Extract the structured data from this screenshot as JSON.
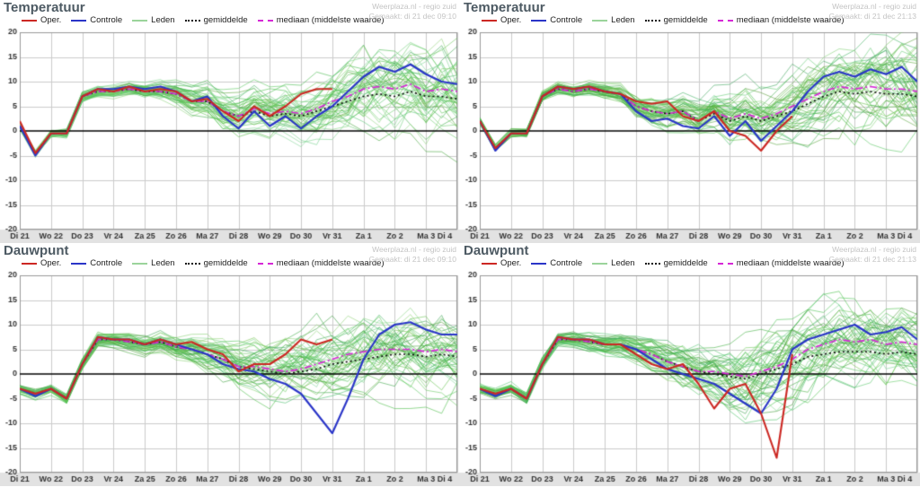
{
  "legend": [
    {
      "label": "Oper.",
      "color": "#cc2823",
      "dash": "solid"
    },
    {
      "label": "Controle",
      "color": "#2a35c8",
      "dash": "solid"
    },
    {
      "label": "Leden",
      "color": "#9bd49b",
      "dash": "solid"
    },
    {
      "label": "gemiddelde",
      "color": "#111111",
      "dash": "dotted"
    },
    {
      "label": "mediaan (middelste waarde)",
      "color": "#d628d6",
      "dash": "dashed"
    }
  ],
  "axis": {
    "ylim": [
      -20,
      20
    ],
    "yticks": [
      20,
      15,
      10,
      5,
      0,
      -5,
      -10,
      -15,
      -20
    ],
    "categories": [
      "Di 21",
      "Wo 22",
      "Do 23",
      "Vr 24",
      "Za 25",
      "Zo 26",
      "Ma 27",
      "Di 28",
      "Wo 29",
      "Do 30",
      "Vr 31",
      "Za 1",
      "Zo 2",
      "Ma 3",
      "Di 4"
    ]
  },
  "chart_data": [
    {
      "type": "line",
      "title": "Temperatuur",
      "watermark1": "Weerplaza.nl - regio zuid",
      "watermark2": "Gemaakt: di 21 dec 09:10",
      "x_days": 14,
      "x_step_days": 0.5,
      "series": [
        {
          "name": "gemiddelde",
          "color": "#111111",
          "width": 1.7,
          "dash": [
            2,
            3
          ],
          "values": [
            1,
            -4.5,
            -0.5,
            -0.5,
            7,
            8,
            8,
            8.5,
            8,
            8,
            7.5,
            6,
            6,
            4,
            3,
            4,
            3,
            3.5,
            3,
            4,
            5,
            6,
            7,
            7.5,
            7,
            8,
            7,
            7,
            6.5
          ]
        },
        {
          "name": "mediaan (middelste waarde)",
          "color": "#d628d6",
          "width": 1.7,
          "dash": [
            8,
            3,
            2,
            3
          ],
          "values": [
            1,
            -4.5,
            -0.5,
            -0.5,
            7,
            8,
            8,
            8.5,
            8,
            8,
            7.5,
            6,
            6,
            4,
            3,
            4.5,
            3.5,
            4,
            3.5,
            4.5,
            6,
            7,
            8.5,
            9,
            8.5,
            9.5,
            8,
            8.5,
            8
          ]
        },
        {
          "name": "Controle",
          "color": "#2a35c8",
          "width": 2.1,
          "dash": [],
          "values": [
            1,
            -5,
            -0.5,
            -0.5,
            7,
            8.5,
            8.5,
            9,
            8.5,
            9,
            8,
            6,
            7,
            3,
            0.5,
            4,
            1,
            3,
            0.5,
            3,
            5,
            8,
            11,
            13,
            12,
            13.5,
            11.5,
            10,
            9.5
          ]
        },
        {
          "name": "Oper.",
          "color": "#cc2823",
          "width": 2.1,
          "dash": [],
          "values": [
            2,
            -4.5,
            -0.5,
            -0.5,
            7,
            8.5,
            8,
            9,
            8,
            8.5,
            8,
            6,
            6.5,
            4,
            2,
            5,
            3,
            5,
            7.5,
            8.5,
            8.5
          ]
        }
      ],
      "ensemble": {
        "name": "Leden",
        "count": 49,
        "seed": 11,
        "spread_by_day": [
          0.5,
          0.6,
          0.8,
          1,
          1.2,
          1.8,
          2.8,
          3.5,
          4,
          4.5,
          5,
          6,
          6.5,
          7,
          7.5
        ]
      }
    },
    {
      "type": "line",
      "title": "Temperatuur",
      "watermark1": "Weerplaza.nl - regio zuid",
      "watermark2": "Gemaakt: di 21 dec 21:13",
      "x_days": 14,
      "x_step_days": 0.5,
      "series": [
        {
          "name": "gemiddelde",
          "color": "#111111",
          "width": 1.7,
          "dash": [
            2,
            3
          ],
          "values": [
            2,
            -3.5,
            -0.5,
            -0.5,
            7,
            8.5,
            8,
            8.5,
            8,
            7.5,
            5,
            4,
            3.5,
            4,
            2,
            3.5,
            2,
            3,
            2,
            3,
            4,
            5.5,
            7,
            8,
            7.5,
            8,
            7.5,
            7.5,
            7
          ]
        },
        {
          "name": "mediaan (middelste waarde)",
          "color": "#d628d6",
          "width": 1.7,
          "dash": [
            8,
            3,
            2,
            3
          ],
          "values": [
            2,
            -3.5,
            -0.5,
            -0.5,
            7,
            8.5,
            8,
            8.5,
            8,
            7.5,
            5,
            4,
            3.5,
            4,
            2,
            4,
            2.5,
            3.5,
            2.5,
            3.5,
            5,
            6.5,
            8,
            9,
            8.5,
            9,
            8.5,
            8.5,
            8
          ]
        },
        {
          "name": "Controle",
          "color": "#2a35c8",
          "width": 2.1,
          "dash": [],
          "values": [
            2,
            -4,
            -0.5,
            -0.5,
            7,
            9,
            8.5,
            9,
            8,
            7.5,
            4,
            2,
            2.5,
            1,
            0.5,
            3,
            -1,
            2,
            -2,
            1,
            4,
            8,
            11,
            12,
            11,
            12.5,
            11.5,
            13,
            10
          ]
        },
        {
          "name": "Oper.",
          "color": "#cc2823",
          "width": 2.1,
          "dash": [],
          "values": [
            2,
            -3.5,
            -0.5,
            -0.5,
            7,
            9,
            8.5,
            9,
            8,
            7.5,
            6,
            5.5,
            6,
            3,
            2,
            4,
            0,
            -1,
            -4,
            0,
            3
          ]
        }
      ],
      "ensemble": {
        "name": "Leden",
        "count": 49,
        "seed": 23,
        "spread_by_day": [
          0.5,
          0.6,
          0.8,
          1,
          1.2,
          1.8,
          2.8,
          3.5,
          4,
          4.5,
          5.5,
          6,
          6.5,
          7,
          7.5
        ]
      }
    },
    {
      "type": "line",
      "title": "Dauwpunt",
      "watermark1": "Weerplaza.nl - regio zuid",
      "watermark2": "Gemaakt: di 21 dec 09:10",
      "x_days": 14,
      "x_step_days": 0.5,
      "series": [
        {
          "name": "gemiddelde",
          "color": "#111111",
          "width": 1.7,
          "dash": [
            2,
            3
          ],
          "values": [
            -3,
            -4,
            -3,
            -5,
            2,
            7,
            7,
            6.5,
            6,
            6.5,
            5.5,
            5,
            4,
            3,
            1.5,
            1,
            0.5,
            0,
            0.5,
            1,
            2,
            2.5,
            3,
            3.5,
            4,
            4,
            3.5,
            4,
            3.5
          ]
        },
        {
          "name": "mediaan (middelste waarde)",
          "color": "#d628d6",
          "width": 1.7,
          "dash": [
            8,
            3,
            2,
            3
          ],
          "values": [
            -3,
            -4,
            -3,
            -5,
            2,
            7,
            7,
            6.5,
            6,
            6.5,
            5.5,
            5,
            4,
            3,
            1.5,
            1.5,
            1,
            0.5,
            1,
            2,
            3,
            4,
            4.5,
            5,
            5,
            5,
            4.5,
            5,
            4.5
          ]
        },
        {
          "name": "Controle",
          "color": "#2a35c8",
          "width": 2.1,
          "dash": [],
          "values": [
            -3,
            -4.5,
            -3,
            -5,
            2,
            7.5,
            7,
            7,
            6,
            7,
            6,
            5,
            4,
            2,
            1,
            0.5,
            -1,
            -2,
            -4,
            -8,
            -12,
            -5,
            3,
            8,
            10,
            10.5,
            9,
            8,
            8
          ]
        },
        {
          "name": "Oper.",
          "color": "#cc2823",
          "width": 2.1,
          "dash": [],
          "values": [
            -3,
            -4,
            -3,
            -5,
            2,
            7.5,
            7,
            7,
            6,
            7,
            6,
            6.5,
            5,
            4,
            0.5,
            2,
            2,
            4,
            7,
            6,
            7
          ]
        }
      ],
      "ensemble": {
        "name": "Leden",
        "count": 49,
        "seed": 37,
        "spread_by_day": [
          0.7,
          0.8,
          1,
          1.2,
          1.5,
          2,
          3,
          4,
          4.5,
          5.5,
          6,
          6.5,
          6.5,
          6.5,
          6.5
        ]
      }
    },
    {
      "type": "line",
      "title": "Dauwpunt",
      "watermark1": "Weerplaza.nl - regio zuid",
      "watermark2": "Gemaakt: di 21 dec 21:13",
      "x_days": 14,
      "x_step_days": 0.5,
      "series": [
        {
          "name": "gemiddelde",
          "color": "#111111",
          "width": 1.7,
          "dash": [
            2,
            3
          ],
          "values": [
            -3,
            -4,
            -3,
            -5,
            2,
            7,
            7,
            6.5,
            6,
            6,
            5,
            4,
            2.5,
            1.5,
            0.5,
            0,
            -0.5,
            -1,
            0,
            1,
            2,
            3.5,
            4,
            4.5,
            4.5,
            4.5,
            4,
            4.5,
            4
          ]
        },
        {
          "name": "mediaan (middelste waarde)",
          "color": "#d628d6",
          "width": 1.7,
          "dash": [
            8,
            3,
            2,
            3
          ],
          "values": [
            -3,
            -4,
            -3,
            -5,
            2,
            7,
            7,
            6.5,
            6,
            6,
            5,
            4,
            2.5,
            1.5,
            0.5,
            0.5,
            0,
            -0.5,
            0.5,
            1.5,
            3,
            5,
            6,
            7,
            6.5,
            7,
            6,
            6.5,
            6
          ]
        },
        {
          "name": "Controle",
          "color": "#2a35c8",
          "width": 2.1,
          "dash": [],
          "values": [
            -3,
            -4.5,
            -3,
            -5,
            2,
            7.5,
            7,
            7,
            6,
            6,
            5,
            3,
            1,
            0,
            -1,
            -2,
            -4,
            -6,
            -8,
            -3,
            5,
            7,
            8,
            9,
            10,
            8,
            8.5,
            9.5,
            7
          ]
        },
        {
          "name": "Oper.",
          "color": "#cc2823",
          "width": 2.1,
          "dash": [],
          "values": [
            -3,
            -4,
            -3,
            -5,
            2,
            7.5,
            7,
            7,
            6,
            6,
            4,
            2,
            1,
            2,
            -2,
            -7,
            -3,
            -2,
            -8,
            -17,
            4
          ]
        }
      ],
      "ensemble": {
        "name": "Leden",
        "count": 49,
        "seed": 51,
        "spread_by_day": [
          0.7,
          0.8,
          1,
          1.2,
          1.5,
          2,
          3,
          4,
          5,
          6,
          6.5,
          6.5,
          6.5,
          6.5,
          6.5
        ]
      }
    }
  ]
}
